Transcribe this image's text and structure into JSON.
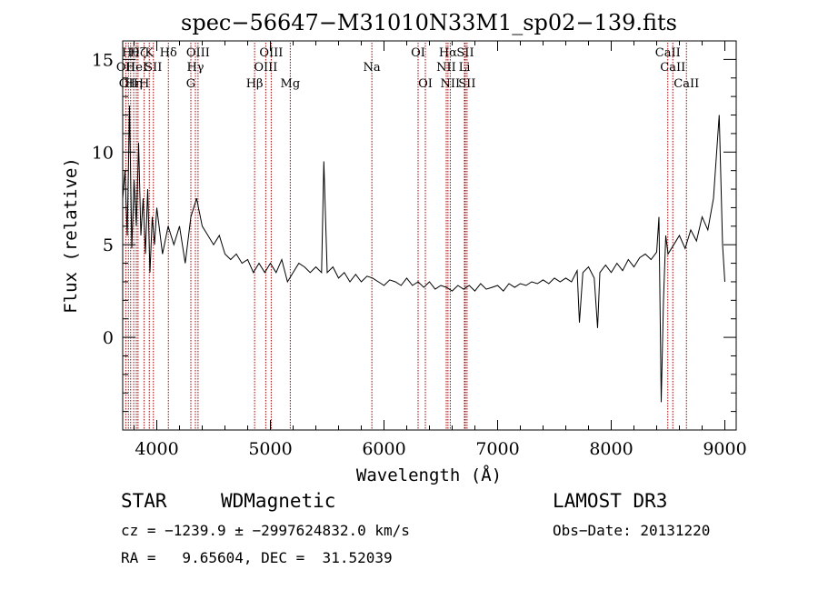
{
  "chart_data": {
    "type": "line",
    "title": "spec−56647−M31010N33M1_sp02−139.fits",
    "xlabel": "Wavelength (Å)",
    "ylabel": "Flux (relative)",
    "xlim": [
      3700,
      9100
    ],
    "ylim": [
      -5,
      16
    ],
    "x_ticks": [
      4000,
      5000,
      6000,
      7000,
      8000,
      9000
    ],
    "y_ticks": [
      0,
      5,
      10,
      15
    ],
    "x_tick_labels": [
      "4000",
      "5000",
      "6000",
      "7000",
      "8000",
      "9000"
    ],
    "y_tick_labels": [
      "0",
      "5",
      "10",
      "15"
    ],
    "series": [
      {
        "name": "flux",
        "x": [
          3700,
          3720,
          3740,
          3760,
          3780,
          3800,
          3820,
          3840,
          3860,
          3880,
          3900,
          3920,
          3940,
          3960,
          3980,
          4000,
          4050,
          4100,
          4150,
          4200,
          4250,
          4300,
          4350,
          4400,
          4450,
          4500,
          4550,
          4600,
          4650,
          4700,
          4750,
          4800,
          4850,
          4900,
          4950,
          5000,
          5050,
          5100,
          5150,
          5200,
          5250,
          5300,
          5350,
          5400,
          5450,
          5470,
          5500,
          5550,
          5600,
          5650,
          5700,
          5750,
          5800,
          5850,
          5900,
          5950,
          6000,
          6050,
          6100,
          6150,
          6200,
          6250,
          6300,
          6350,
          6400,
          6450,
          6500,
          6550,
          6600,
          6650,
          6700,
          6750,
          6800,
          6850,
          6900,
          6950,
          7000,
          7050,
          7100,
          7150,
          7200,
          7250,
          7300,
          7350,
          7400,
          7450,
          7500,
          7550,
          7600,
          7650,
          7700,
          7720,
          7750,
          7800,
          7850,
          7880,
          7900,
          7950,
          8000,
          8050,
          8100,
          8150,
          8200,
          8250,
          8300,
          8350,
          8400,
          8420,
          8440,
          8460,
          8480,
          8500,
          8550,
          8600,
          8650,
          8700,
          8750,
          8800,
          8850,
          8900,
          8950,
          8980,
          9000
        ],
        "values": [
          7.5,
          9.0,
          5.5,
          12.5,
          4.8,
          8.5,
          6.0,
          10.5,
          5.5,
          7.5,
          4.5,
          8.0,
          3.5,
          6.5,
          5.0,
          7.0,
          4.5,
          6.0,
          5.0,
          6.0,
          4.0,
          6.5,
          7.5,
          6.0,
          5.5,
          5.0,
          5.5,
          4.5,
          4.2,
          4.5,
          4.0,
          4.2,
          3.5,
          4.0,
          3.5,
          4.0,
          3.5,
          4.2,
          3.0,
          3.5,
          4.0,
          3.8,
          3.5,
          3.8,
          3.5,
          9.5,
          3.5,
          3.8,
          3.2,
          3.5,
          3.0,
          3.4,
          3.0,
          3.3,
          3.2,
          3.0,
          2.8,
          3.1,
          3.0,
          2.8,
          3.2,
          2.8,
          3.0,
          2.7,
          3.0,
          2.6,
          2.8,
          2.7,
          2.5,
          2.8,
          2.6,
          2.8,
          2.5,
          2.9,
          2.6,
          2.7,
          2.8,
          2.5,
          2.9,
          2.7,
          2.9,
          2.8,
          3.0,
          2.9,
          3.1,
          2.9,
          3.2,
          3.0,
          3.2,
          3.0,
          3.6,
          0.8,
          3.5,
          3.8,
          3.2,
          0.5,
          3.5,
          3.9,
          3.5,
          4.0,
          3.6,
          4.2,
          3.8,
          4.3,
          4.5,
          4.2,
          4.6,
          6.5,
          -3.5,
          2.0,
          5.5,
          4.5,
          5.0,
          5.5,
          4.8,
          5.8,
          5.2,
          6.5,
          5.8,
          7.5,
          12.0,
          5.0,
          3.0
        ]
      }
    ],
    "line_markers": [
      {
        "wl": 3727,
        "label": "OII",
        "row": 1
      },
      {
        "wl": 3750,
        "label": "OII",
        "row": 2
      },
      {
        "wl": 3770,
        "label": "Hθ",
        "row": 0
      },
      {
        "wl": 3797,
        "label": "Hη",
        "row": 2
      },
      {
        "wl": 3820,
        "label": "HeI",
        "row": 1
      },
      {
        "wl": 3835,
        "label": "Hζ",
        "row": 0
      },
      {
        "wl": 3889,
        "label": "H",
        "row": 2
      },
      {
        "wl": 3934,
        "label": "K",
        "row": 0
      },
      {
        "wl": 3970,
        "label": "SII",
        "row": 1
      },
      {
        "wl": 4102,
        "label": "Hδ",
        "row": 0
      },
      {
        "wl": 4300,
        "label": "G",
        "row": 2
      },
      {
        "wl": 4340,
        "label": "Hγ",
        "row": 1
      },
      {
        "wl": 4363,
        "label": "OIII",
        "row": 0
      },
      {
        "wl": 4861,
        "label": "Hβ",
        "row": 2
      },
      {
        "wl": 4959,
        "label": "OIII",
        "row": 1
      },
      {
        "wl": 5007,
        "label": "OIII",
        "row": 0
      },
      {
        "wl": 5175,
        "label": "Mg",
        "row": 2
      },
      {
        "wl": 5893,
        "label": "Na",
        "row": 1
      },
      {
        "wl": 6300,
        "label": "OI",
        "row": 0
      },
      {
        "wl": 6364,
        "label": "OI",
        "row": 2
      },
      {
        "wl": 6548,
        "label": "NII",
        "row": 1
      },
      {
        "wl": 6563,
        "label": "Hα",
        "row": 0
      },
      {
        "wl": 6583,
        "label": "NII",
        "row": 2
      },
      {
        "wl": 6708,
        "label": "Li",
        "row": 1
      },
      {
        "wl": 6716,
        "label": "SII",
        "row": 0
      },
      {
        "wl": 6731,
        "label": "SII",
        "row": 2
      },
      {
        "wl": 8498,
        "label": "CaII",
        "row": 0
      },
      {
        "wl": 8542,
        "label": "CaII",
        "row": 1
      },
      {
        "wl": 8662,
        "label": "CaII",
        "row": 2
      }
    ]
  },
  "info": {
    "class_label": "STAR",
    "subclass_label": "WDMagnetic",
    "survey_label": "LAMOST DR3",
    "cz_text": "cz = −1239.9 ± −2997624832.0 km/s",
    "obs_date_text": "Obs−Date: 20131220",
    "coords_text": "RA =   9.65604, DEC =  31.52039"
  },
  "colors": {
    "spectrum": "#000000",
    "marker_line": "#a00000",
    "axis": "#000000"
  }
}
